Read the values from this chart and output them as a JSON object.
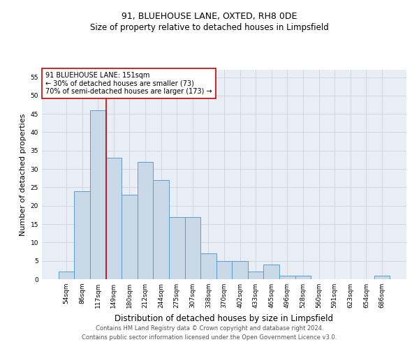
{
  "title": "91, BLUEHOUSE LANE, OXTED, RH8 0DE",
  "subtitle": "Size of property relative to detached houses in Limpsfield",
  "xlabel": "Distribution of detached houses by size in Limpsfield",
  "ylabel": "Number of detached properties",
  "footer_line1": "Contains HM Land Registry data © Crown copyright and database right 2024.",
  "footer_line2": "Contains public sector information licensed under the Open Government Licence v3.0.",
  "bar_labels": [
    "54sqm",
    "86sqm",
    "117sqm",
    "149sqm",
    "180sqm",
    "212sqm",
    "244sqm",
    "275sqm",
    "307sqm",
    "338sqm",
    "370sqm",
    "402sqm",
    "433sqm",
    "465sqm",
    "496sqm",
    "528sqm",
    "560sqm",
    "591sqm",
    "623sqm",
    "654sqm",
    "686sqm"
  ],
  "bar_values": [
    2,
    24,
    46,
    33,
    23,
    32,
    27,
    17,
    17,
    7,
    5,
    5,
    2,
    4,
    1,
    1,
    0,
    0,
    0,
    0,
    1
  ],
  "bar_color": "#c9d9e8",
  "bar_edge_color": "#5b9bd5",
  "red_line_x": 2.5,
  "annotation_text_line1": "91 BLUEHOUSE LANE: 151sqm",
  "annotation_text_line2": "← 30% of detached houses are smaller (73)",
  "annotation_text_line3": "70% of semi-detached houses are larger (173) →",
  "annotation_box_color": "#ffffff",
  "annotation_box_edge_color": "#cc0000",
  "ylim": [
    0,
    57
  ],
  "yticks": [
    0,
    5,
    10,
    15,
    20,
    25,
    30,
    35,
    40,
    45,
    50,
    55
  ],
  "red_line_color": "#cc0000",
  "grid_color": "#c8d4e0",
  "bg_color": "#e8eef4",
  "title_fontsize": 9,
  "subtitle_fontsize": 8.5,
  "ylabel_fontsize": 8,
  "xlabel_fontsize": 8.5,
  "tick_fontsize": 6.5,
  "annotation_fontsize": 7,
  "footer_fontsize": 6
}
